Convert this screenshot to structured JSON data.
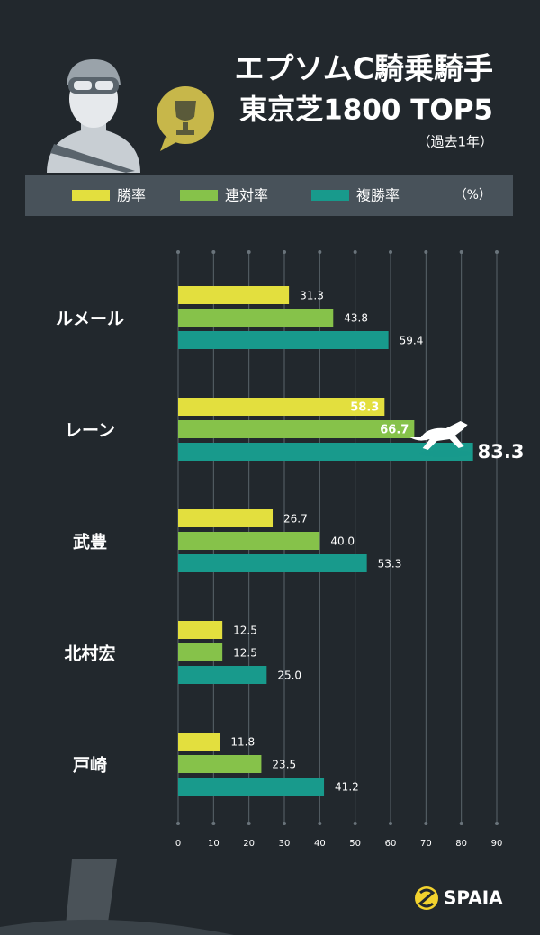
{
  "chart_data": {
    "type": "bar",
    "orientation": "horizontal",
    "title": "エプソムC騎乗騎手",
    "subtitle": "東京芝1800 TOP5",
    "note": "（過去1年）",
    "unit": "（%）",
    "brand": "SPAIA",
    "categories": [
      "ルメール",
      "レーン",
      "武豊",
      "北村宏",
      "戸崎"
    ],
    "series": [
      {
        "name": "勝率",
        "color": "#e3df3e",
        "values": [
          31.3,
          58.3,
          26.7,
          12.5,
          11.8
        ],
        "value_labels": [
          "31.3",
          "58.3",
          "26.7",
          "12.5",
          "11.8"
        ]
      },
      {
        "name": "連対率",
        "color": "#86c24a",
        "values": [
          43.8,
          66.7,
          40.0,
          12.5,
          23.5
        ],
        "value_labels": [
          "43.8",
          "66.7",
          "40.0",
          "12.5",
          "23.5"
        ]
      },
      {
        "name": "複勝率",
        "color": "#189a8c",
        "values": [
          59.4,
          83.3,
          53.3,
          25.0,
          41.2
        ],
        "value_labels": [
          "59.4",
          "83.3",
          "53.3",
          "25.0",
          "41.2"
        ]
      }
    ],
    "xlim": [
      0,
      90
    ],
    "xticks": [
      0,
      10,
      20,
      30,
      40,
      50,
      60,
      70,
      80,
      90
    ],
    "grid": true
  }
}
